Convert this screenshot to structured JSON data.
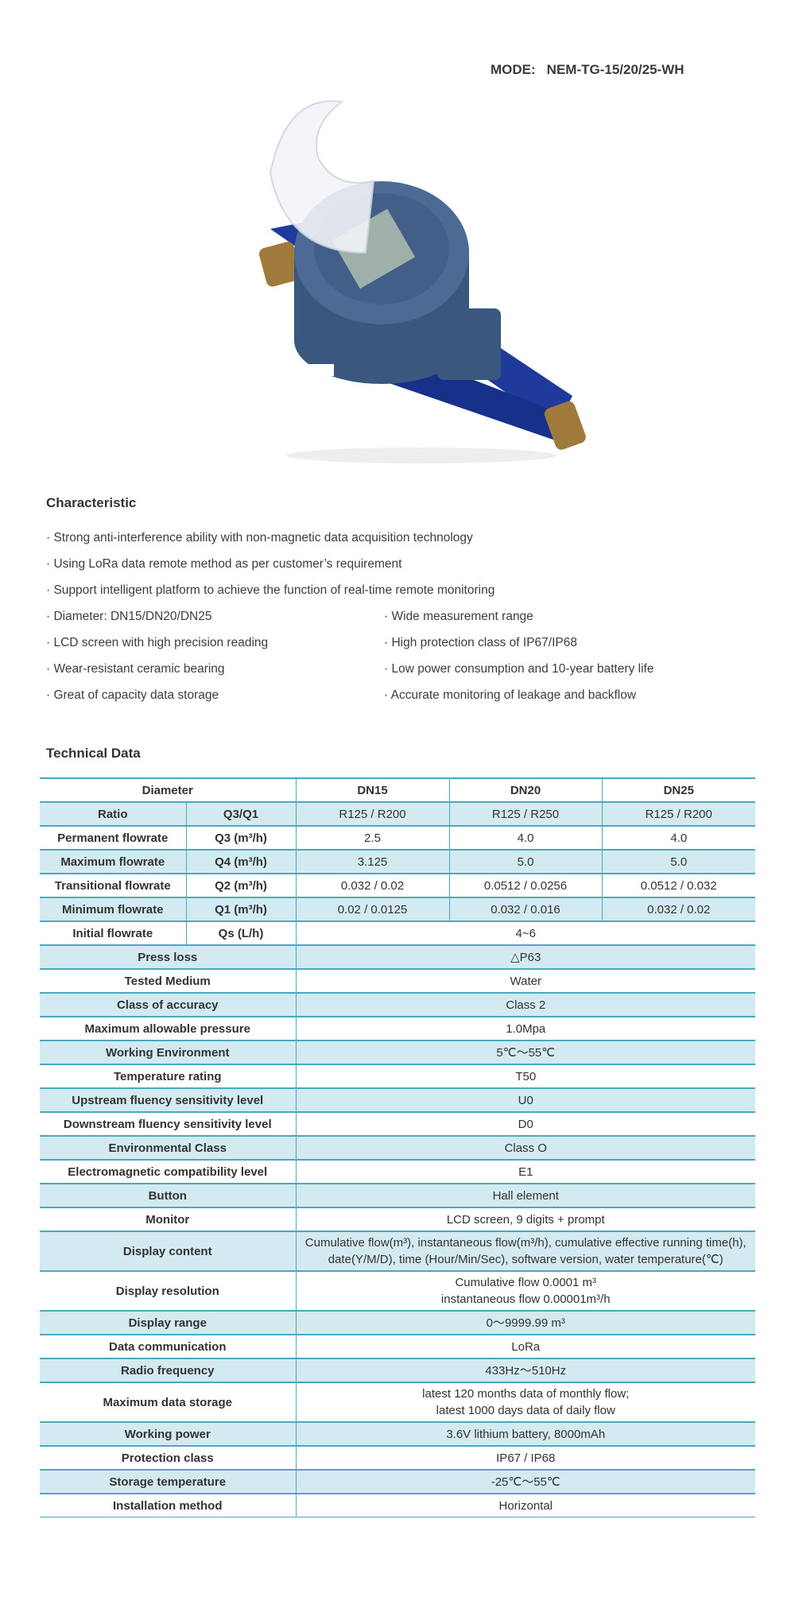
{
  "mode": {
    "label": "MODE:",
    "value": "NEM-TG-15/20/25-WH"
  },
  "characteristic": {
    "title": "Characteristic",
    "items": [
      "· Strong anti-interference ability with non-magnetic data acquisition technology",
      "· Using LoRa data remote method as per customer’s requirement",
      "· Support intelligent platform to achieve the function of real-time remote monitoring",
      "· Diameter: DN15/DN20/DN25",
      "· Wide measurement range",
      "· LCD screen with high precision reading",
      "· High protection class of IP67/IP68",
      "· Wear-resistant ceramic bearing",
      "· Low power consumption and 10-year battery life",
      "· Great of capacity data storage",
      "· Accurate monitoring of leakage and backflow"
    ]
  },
  "technical": {
    "title": "Technical Data",
    "header": [
      "Diameter",
      "DN15",
      "DN20",
      "DN25"
    ],
    "multi": [
      [
        "Ratio",
        "Q3/Q1",
        "R125 / R200",
        "R125 / R250",
        "R125 / R200"
      ],
      [
        "Permanent flowrate",
        "Q3 (m³/h)",
        "2.5",
        "4.0",
        "4.0"
      ],
      [
        "Maximum flowrate",
        "Q4 (m³/h)",
        "3.125",
        "5.0",
        "5.0"
      ],
      [
        "Transitional flowrate",
        "Q2 (m³/h)",
        "0.032 / 0.02",
        "0.0512 / 0.0256",
        "0.0512 / 0.032"
      ],
      [
        "Minimum flowrate",
        "Q1 (m³/h)",
        "0.02 / 0.0125",
        "0.032 / 0.016",
        "0.032 / 0.02"
      ]
    ],
    "initial": [
      "Initial flowrate",
      "Qs (L/h)",
      "4~6"
    ],
    "rows": [
      [
        "Press loss",
        "△P63"
      ],
      [
        "Tested Medium",
        "Water"
      ],
      [
        "Class of accuracy",
        "Class 2"
      ],
      [
        "Maximum allowable pressure",
        "1.0Mpa"
      ],
      [
        "Working Environment",
        "5℃～55℃"
      ],
      [
        "Temperature rating",
        "T50"
      ],
      [
        "Upstream fluency sensitivity level",
        "U0"
      ],
      [
        "Downstream fluency sensitivity level",
        "D0"
      ],
      [
        "Environmental Class",
        "Class O"
      ],
      [
        "Electromagnetic compatibility level",
        "E1"
      ],
      [
        "Button",
        "Hall element"
      ],
      [
        "Monitor",
        "LCD screen, 9 digits + prompt"
      ],
      [
        "Display content",
        "Cumulative flow(m³), instantaneous flow(m³/h), cumulative effective running time(h), date(Y/M/D), time (Hour/Min/Sec), software version, water temperature(℃)"
      ],
      [
        "Display resolution",
        "Cumulative flow 0.0001 m³\ninstantaneous flow 0.00001m³/h"
      ],
      [
        "Display range",
        "0～9999.99 m³"
      ],
      [
        "Data communication",
        "LoRa"
      ],
      [
        "Radio frequency",
        "433Hz～510Hz"
      ],
      [
        "Maximum data storage",
        "latest 120 months data of monthly flow;\nlatest 1000 days data of daily flow"
      ],
      [
        "Working power",
        "3.6V lithium battery, 8000mAh"
      ],
      [
        "Protection class",
        "IP67 / IP68"
      ],
      [
        "Storage temperature",
        "-25℃～55℃"
      ],
      [
        "Installation method",
        "Horizontal"
      ]
    ]
  },
  "colors": {
    "border": "#4aa8c0",
    "row_alt": "#d4eaf1",
    "meter_body": "#1f3a9a",
    "meter_head": "#3f5c86"
  }
}
